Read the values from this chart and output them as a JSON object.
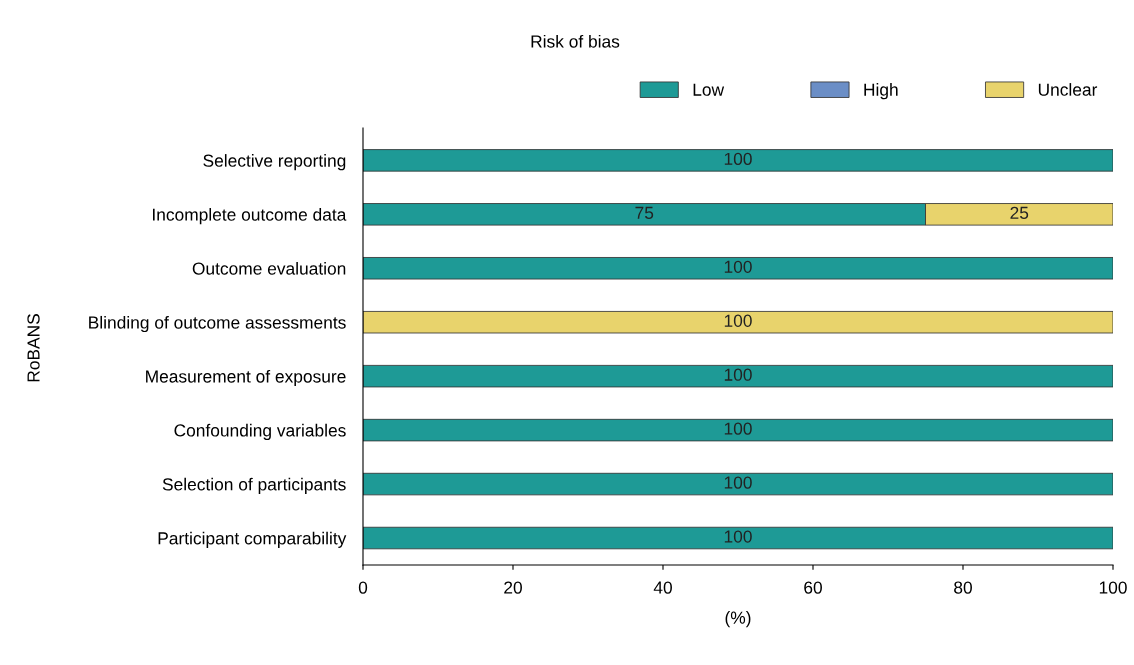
{
  "chart_data": {
    "type": "bar",
    "orientation": "horizontal",
    "stacked": true,
    "title": "Risk of bias",
    "xlabel": "(%)",
    "ylabel": "RoBANS",
    "categories": [
      "Selective reporting",
      "Incomplete outcome data",
      "Outcome evaluation",
      "Blinding of outcome assessments",
      "Measurement of exposure",
      "Confounding variables",
      "Selection of participants",
      "Participant comparability"
    ],
    "series": [
      {
        "name": "Low",
        "color": "#1e9a96",
        "values": [
          100,
          75,
          100,
          0,
          100,
          100,
          100,
          100
        ],
        "value_labels": [
          "100",
          "75",
          "100",
          null,
          "100",
          "100",
          "100",
          "100"
        ]
      },
      {
        "name": "High",
        "color": "#6b8ec6",
        "values": [
          0,
          0,
          0,
          0,
          0,
          0,
          0,
          0
        ],
        "value_labels": [
          null,
          null,
          null,
          null,
          null,
          null,
          null,
          null
        ]
      },
      {
        "name": "Unclear",
        "color": "#e8d36c",
        "values": [
          0,
          25,
          0,
          100,
          0,
          0,
          0,
          0
        ],
        "value_labels": [
          null,
          "25",
          null,
          "100",
          null,
          null,
          null,
          null
        ]
      }
    ],
    "xlim": [
      0,
      100
    ],
    "xticks": [
      0,
      20,
      40,
      60,
      80,
      100
    ],
    "legend": "top right",
    "grid": false
  }
}
